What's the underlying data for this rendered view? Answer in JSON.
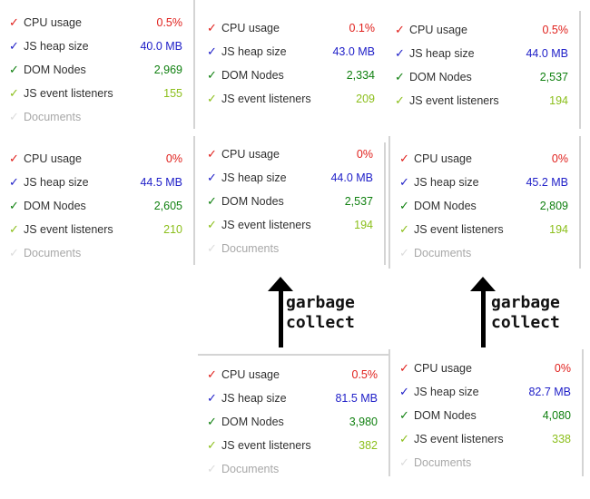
{
  "colors": {
    "cpu": "#e0201c",
    "heap": "#2020c8",
    "dom": "#108010",
    "listeners": "#8cbf1c",
    "disabled": "#a8a8a8"
  },
  "labels": {
    "cpu": "CPU usage",
    "heap": "JS heap size",
    "dom": "DOM Nodes",
    "listeners": "JS event listeners",
    "documents": "Documents"
  },
  "icons": {
    "check": "checkmark-icon"
  },
  "panels": [
    {
      "id": "a",
      "cpu": "0.5%",
      "heap": "40.0 MB",
      "dom": "2,969",
      "listeners": "155"
    },
    {
      "id": "b",
      "cpu": "0.1%",
      "heap": "43.0 MB",
      "dom": "2,334",
      "listeners": "209"
    },
    {
      "id": "c",
      "cpu": "0.5%",
      "heap": "44.0 MB",
      "dom": "2,537",
      "listeners": "194"
    },
    {
      "id": "d",
      "cpu": "0%",
      "heap": "44.5 MB",
      "dom": "2,605",
      "listeners": "210"
    },
    {
      "id": "e",
      "cpu": "0%",
      "heap": "44.0 MB",
      "dom": "2,537",
      "listeners": "194"
    },
    {
      "id": "f",
      "cpu": "0%",
      "heap": "45.2 MB",
      "dom": "2,809",
      "listeners": "194"
    },
    {
      "id": "g",
      "cpu": "0.5%",
      "heap": "81.5 MB",
      "dom": "3,980",
      "listeners": "382"
    },
    {
      "id": "h",
      "cpu": "0%",
      "heap": "82.7 MB",
      "dom": "4,080",
      "listeners": "338"
    }
  ],
  "annotations": [
    {
      "line1": "garbage",
      "line2": "collect"
    },
    {
      "line1": "garbage",
      "line2": "collect"
    }
  ]
}
